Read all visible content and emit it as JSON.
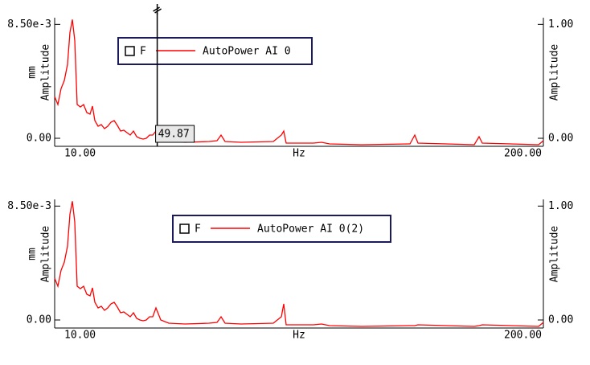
{
  "chart_data": [
    {
      "type": "line",
      "x_label": "Hz",
      "y_unit": "mm",
      "y_label": "Amplitude",
      "y2_label": "Amplitude",
      "legend_checkbox_label": "F",
      "cursor": 49.87,
      "xlim": [
        10,
        200
      ],
      "xticks": [
        {
          "value": 10,
          "label": "10.00"
        },
        {
          "value": 200,
          "label": "200.00"
        }
      ],
      "ylim": [
        -0.0006,
        0.009
      ],
      "yticks": [
        {
          "value": 0,
          "label": "0.00"
        },
        {
          "value": 0.0085,
          "label": "8.50e-3"
        }
      ],
      "y2lim": [
        -0.0706,
        1.0588
      ],
      "y2ticks": [
        {
          "value": 0,
          "label": "0.00"
        },
        {
          "value": 1,
          "label": "1.00"
        }
      ],
      "x": [
        10,
        11.25,
        12.5,
        13.75,
        15,
        15.94,
        16.88,
        17.81,
        18.75,
        20,
        21.25,
        22.5,
        23.75,
        24.69,
        25.63,
        26.88,
        28.13,
        29.38,
        30.63,
        31.88,
        33.13,
        34.38,
        35.63,
        36.88,
        38.13,
        39.38,
        40.63,
        41.88,
        43.13,
        44.38,
        45.63,
        46.88,
        48.13,
        49.38,
        51.25,
        54.38,
        60.63,
        70,
        73.13,
        74.69,
        76.25,
        82.5,
        95,
        98.13,
        99.06,
        100,
        110.63,
        113.75,
        116.88,
        129.38,
        148.13,
        150,
        151.25,
        173.13,
        175,
        176.25,
        198.13,
        200
      ],
      "series": [
        {
          "name": "AutoPower AI 0",
          "color": "#ff0000",
          "values": [
            0.00311,
            0.00252,
            0.00371,
            0.00431,
            0.00551,
            0.0079,
            0.00886,
            0.00731,
            0.00252,
            0.00234,
            0.00252,
            0.00192,
            0.0018,
            0.0024,
            0.00132,
            0.0009,
            0.00102,
            0.00072,
            0.0009,
            0.0012,
            0.00132,
            0.00096,
            0.00054,
            0.0006,
            0.00042,
            0.00024,
            0.00054,
            0.00012,
            0,
            -6e-05,
            0,
            0.00024,
            0.00024,
            0.00054,
            0,
            -0.00024,
            -0.0003,
            -0.00024,
            -0.00018,
            0.00024,
            -0.00024,
            -0.0003,
            -0.00024,
            0.00024,
            0.00054,
            -0.00036,
            -0.00036,
            -0.0003,
            -0.00042,
            -0.00048,
            -0.00042,
            0.00024,
            -0.00036,
            -0.00048,
            0.00012,
            -0.00036,
            -0.00048,
            -0.00018
          ]
        }
      ]
    },
    {
      "type": "line",
      "x_label": "Hz",
      "y_unit": "mm",
      "y_label": "Amplitude",
      "y2_label": "Amplitude",
      "legend_checkbox_label": "F",
      "xlim": [
        10,
        200
      ],
      "xticks": [
        {
          "value": 10,
          "label": "10.00"
        },
        {
          "value": 200,
          "label": "200.00"
        }
      ],
      "ylim": [
        -0.0006,
        0.009
      ],
      "yticks": [
        {
          "value": 0,
          "label": "0.00"
        },
        {
          "value": 0.0085,
          "label": "8.50e-3"
        }
      ],
      "y2lim": [
        -0.0706,
        1.0588
      ],
      "y2ticks": [
        {
          "value": 0,
          "label": "0.00"
        },
        {
          "value": 1,
          "label": "1.00"
        }
      ],
      "x": [
        10,
        11.25,
        12.5,
        13.75,
        15,
        15.94,
        16.88,
        17.81,
        18.75,
        20,
        21.25,
        22.5,
        23.75,
        24.69,
        25.63,
        26.88,
        28.13,
        29.38,
        30.63,
        31.88,
        33.13,
        34.38,
        35.63,
        36.88,
        38.13,
        39.38,
        40.63,
        41.88,
        43.13,
        44.38,
        45.63,
        46.88,
        48.13,
        49.38,
        51.25,
        54.38,
        60.63,
        70,
        73.13,
        74.69,
        76.25,
        82.5,
        95,
        98.13,
        99.06,
        100,
        110.63,
        113.75,
        116.88,
        129.38,
        148.13,
        150,
        151.25,
        173.13,
        175,
        176.25,
        198.13,
        200
      ],
      "series": [
        {
          "name": "AutoPower AI 0(2)",
          "color": "#ff0000",
          "values": [
            0.00311,
            0.00252,
            0.00371,
            0.00431,
            0.00551,
            0.0079,
            0.00886,
            0.00731,
            0.00252,
            0.00234,
            0.00252,
            0.00192,
            0.0018,
            0.0024,
            0.00132,
            0.0009,
            0.00102,
            0.00072,
            0.0009,
            0.0012,
            0.00132,
            0.00096,
            0.00054,
            0.0006,
            0.00042,
            0.00024,
            0.00054,
            0.00012,
            0,
            -6e-05,
            0,
            0.00024,
            0.00024,
            0.0009,
            0,
            -0.00024,
            -0.0003,
            -0.00024,
            -0.00018,
            0.00024,
            -0.00024,
            -0.0003,
            -0.00024,
            0.00024,
            0.0012,
            -0.00036,
            -0.00036,
            -0.0003,
            -0.00042,
            -0.00048,
            -0.00042,
            -0.00042,
            -0.00036,
            -0.00048,
            -0.00042,
            -0.00036,
            -0.00048,
            -0.00018
          ]
        }
      ]
    }
  ]
}
